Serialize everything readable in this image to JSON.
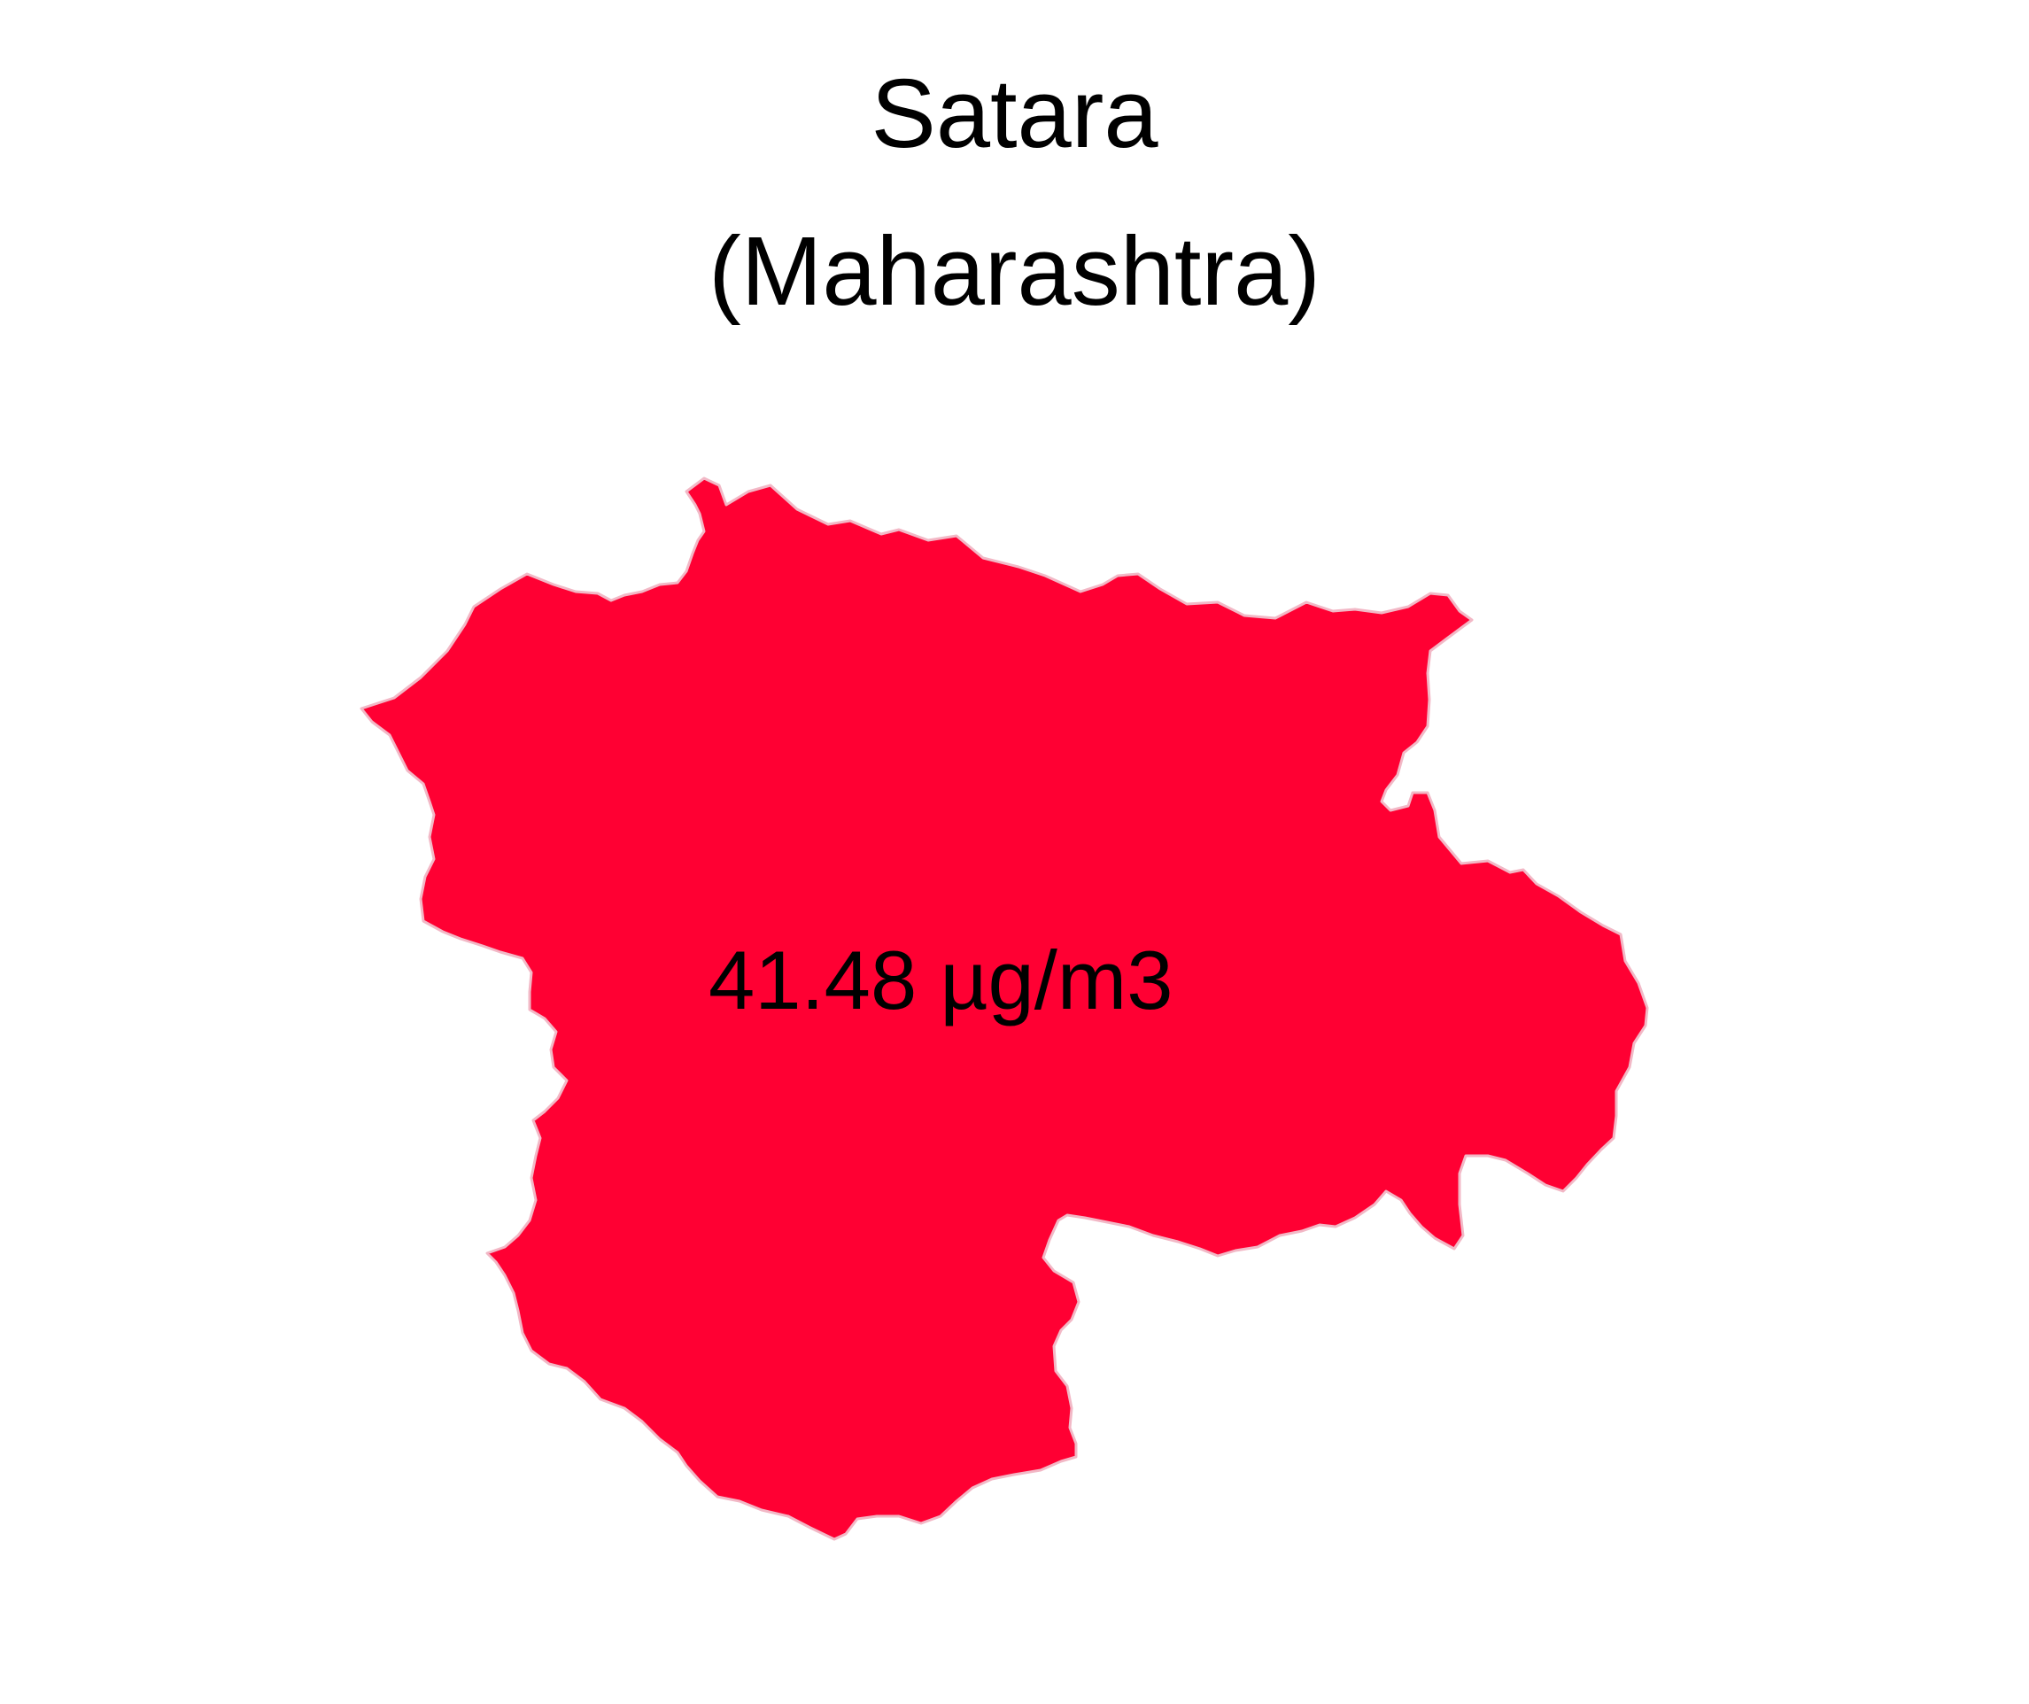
{
  "title": {
    "line1": "Satara",
    "line2": "(Maharashtra)"
  },
  "region": {
    "name": "Satara",
    "state": "Maharashtra",
    "value_label": "41.48 µg/m3",
    "value": 41.48,
    "unit": "µg/m3",
    "fill_color": "#FF0033",
    "border_color": "#F2B8C6"
  }
}
